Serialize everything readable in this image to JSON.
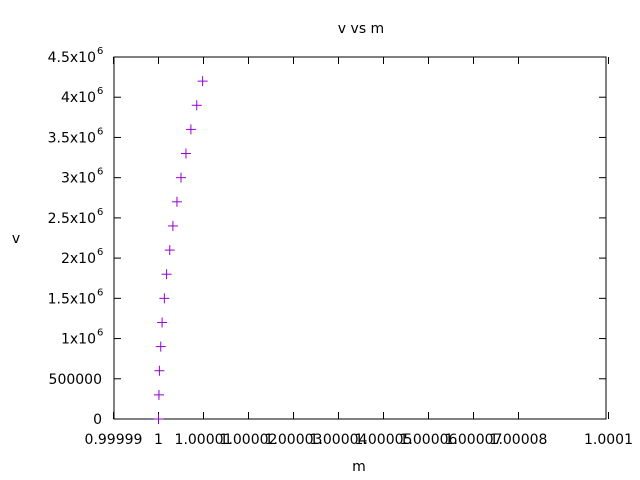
{
  "chart_data": {
    "type": "scatter",
    "title": "v vs m",
    "xlabel": "m",
    "ylabel": "v",
    "xlim": [
      0.99999,
      1.0001
    ],
    "ylim": [
      0,
      4500000
    ],
    "grid": false,
    "legend": "none",
    "marker": "plus",
    "color": "#9400d3",
    "x_ticks": [
      {
        "value": 0.99999,
        "label": "0.99999"
      },
      {
        "value": 1.0,
        "label": "1"
      },
      {
        "value": 1.00001,
        "label": "1.00001"
      },
      {
        "value": 1.00002,
        "label": "1.00002"
      },
      {
        "value": 1.00003,
        "label": "1.00003"
      },
      {
        "value": 1.00004,
        "label": "1.00004"
      },
      {
        "value": 1.00005,
        "label": "1.00005"
      },
      {
        "value": 1.00006,
        "label": "1.00006"
      },
      {
        "value": 1.00007,
        "label": "1.00007"
      },
      {
        "value": 1.00008,
        "label": "1.00008"
      },
      {
        "value": 1.0001,
        "label": "1.0001"
      }
    ],
    "y_ticks": [
      {
        "value": 0,
        "label": "0"
      },
      {
        "value": 500000,
        "label": "500000"
      },
      {
        "value": 1000000,
        "label": "1x10",
        "exp": "6"
      },
      {
        "value": 1500000,
        "label": "1.5x10",
        "exp": "6"
      },
      {
        "value": 2000000,
        "label": "2x10",
        "exp": "6"
      },
      {
        "value": 2500000,
        "label": "2.5x10",
        "exp": "6"
      },
      {
        "value": 3000000,
        "label": "3x10",
        "exp": "6"
      },
      {
        "value": 3500000,
        "label": "3.5x10",
        "exp": "6"
      },
      {
        "value": 4000000,
        "label": "4x10",
        "exp": "6"
      },
      {
        "value": 4500000,
        "label": "4.5x10",
        "exp": "6"
      }
    ],
    "points": [
      {
        "x": 1.0,
        "y": 0
      },
      {
        "x": 1.0000001,
        "y": 300000
      },
      {
        "x": 1.0000002,
        "y": 600000
      },
      {
        "x": 1.0000005,
        "y": 900000
      },
      {
        "x": 1.0000008,
        "y": 1200000
      },
      {
        "x": 1.0000013,
        "y": 1500000
      },
      {
        "x": 1.0000018,
        "y": 1800000
      },
      {
        "x": 1.0000025,
        "y": 2100000
      },
      {
        "x": 1.0000032,
        "y": 2400000
      },
      {
        "x": 1.0000041,
        "y": 2700000
      },
      {
        "x": 1.000005,
        "y": 3000000
      },
      {
        "x": 1.0000061,
        "y": 3300000
      },
      {
        "x": 1.0000072,
        "y": 3600000
      },
      {
        "x": 1.0000085,
        "y": 3900000
      },
      {
        "x": 1.0000098,
        "y": 4200000
      }
    ]
  }
}
